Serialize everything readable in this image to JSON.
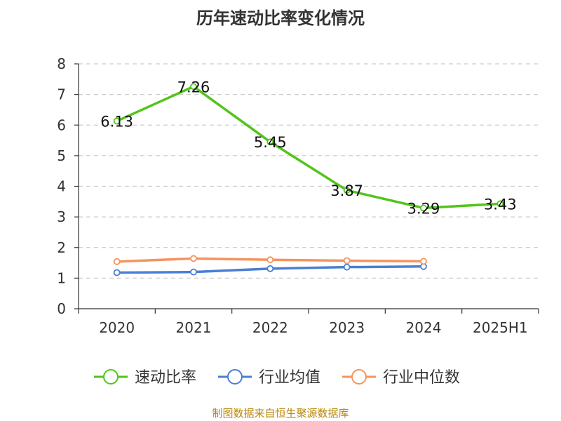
{
  "title": "历年速动比率变化情况",
  "source": "制图数据来自恒生聚源数据库",
  "chart_data": {
    "type": "line",
    "title": "历年速动比率变化情况",
    "categories": [
      "2020",
      "2021",
      "2022",
      "2023",
      "2024",
      "2025H1"
    ],
    "ylim": [
      0,
      8
    ],
    "yticks": [
      0,
      1,
      2,
      3,
      4,
      5,
      6,
      7,
      8
    ],
    "grid": true,
    "legend_position": "bottom",
    "series": [
      {
        "name": "速动比率",
        "color": "#52c41a",
        "values": [
          6.13,
          7.26,
          5.45,
          3.87,
          3.29,
          3.43
        ],
        "labels": [
          "6.13",
          "7.26",
          "5.45",
          "3.87",
          "3.29",
          "3.43"
        ]
      },
      {
        "name": "行业均值",
        "color": "#4a7fd4",
        "values": [
          1.18,
          1.2,
          1.31,
          1.36,
          1.38,
          null
        ]
      },
      {
        "name": "行业中位数",
        "color": "#f5945c",
        "values": [
          1.54,
          1.64,
          1.6,
          1.57,
          1.55,
          null
        ]
      }
    ]
  }
}
